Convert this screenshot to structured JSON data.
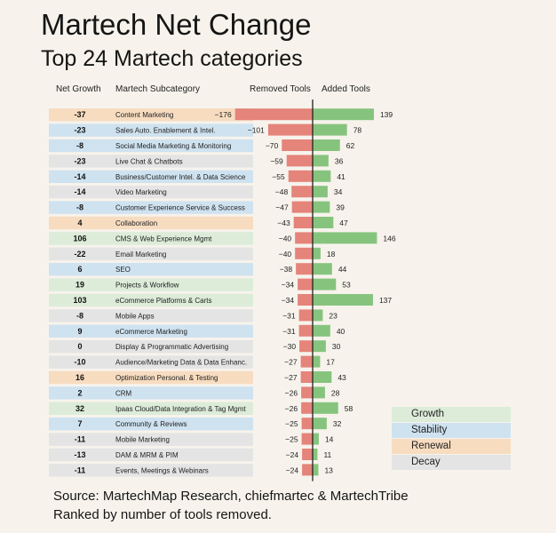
{
  "header": {
    "title": "Martech Net Change",
    "subtitle": "Top 24 Martech categories"
  },
  "columns": {
    "net_growth": "Net Growth",
    "subcategory": "Martech Subcategory",
    "removed": "Removed Tools",
    "added": "Added Tools"
  },
  "colors": {
    "Growth": "#dcecd9",
    "Stability": "#cfe2f0",
    "Renewal": "#f7dcc0",
    "Decay": "#e4e4e4",
    "removed_bar": "#e4847a",
    "added_bar": "#86c47e",
    "axis": "#222222"
  },
  "legend": {
    "items": [
      {
        "label": "Growth",
        "color": "#dcecd9"
      },
      {
        "label": "Stability",
        "color": "#cfe2f0"
      },
      {
        "label": "Renewal",
        "color": "#f7dcc0"
      },
      {
        "label": "Decay",
        "color": "#e4e4e4"
      }
    ]
  },
  "footer": {
    "source_line1": "Source: MartechMap Research, chiefmartec & MartechTribe",
    "source_line2": "Ranked by number of tools removed."
  },
  "chart_data": {
    "type": "bar",
    "orientation": "horizontal-diverging",
    "categories": [
      "Content Marketing",
      "Sales Auto. Enablement & Intel.",
      "Social Media Marketing & Monitoring",
      "Live Chat & Chatbots",
      "Business/Customer Intel. & Data Science",
      "Video Marketing",
      "Customer Experience Service & Success",
      "Collaboration",
      "CMS & Web Experience Mgmt",
      "Email Marketing",
      "SEO",
      "Projects & Workflow",
      "eCommerce Platforms & Carts",
      "Mobile Apps",
      "eCommerce Marketing",
      "Display & Programmatic Advertising",
      "Audience/Marketing Data & Data Enhanc.",
      "Optimization Personal. & Testing",
      "CRM",
      "Ipaas Cloud/Data Integration & Tag Mgmt",
      "Community & Reviews",
      "Mobile Marketing",
      "DAM & MRM & PIM",
      "Events, Meetings & Webinars"
    ],
    "net_growth": [
      -37,
      -23,
      -8,
      -23,
      -14,
      -14,
      -8,
      4,
      106,
      -22,
      6,
      19,
      103,
      -8,
      9,
      0,
      -10,
      16,
      2,
      32,
      7,
      -11,
      -13,
      -11
    ],
    "status": [
      "Renewal",
      "Stability",
      "Stability",
      "Decay",
      "Stability",
      "Decay",
      "Stability",
      "Renewal",
      "Growth",
      "Decay",
      "Stability",
      "Growth",
      "Growth",
      "Decay",
      "Stability",
      "Decay",
      "Decay",
      "Renewal",
      "Stability",
      "Growth",
      "Stability",
      "Decay",
      "Decay",
      "Decay"
    ],
    "series": [
      {
        "name": "Removed Tools",
        "values": [
          -176,
          -101,
          -70,
          -59,
          -55,
          -48,
          -47,
          -43,
          -40,
          -40,
          -38,
          -34,
          -34,
          -31,
          -31,
          -30,
          -27,
          -27,
          -26,
          -26,
          -25,
          -25,
          -24,
          -24
        ]
      },
      {
        "name": "Added Tools",
        "values": [
          139,
          78,
          62,
          36,
          41,
          34,
          39,
          47,
          146,
          18,
          44,
          53,
          137,
          23,
          40,
          30,
          17,
          43,
          28,
          58,
          32,
          14,
          11,
          13
        ]
      }
    ],
    "removed_labels": [
      "−176",
      "−101",
      "−70",
      "−59",
      "−55",
      "−48",
      "−47",
      "−43",
      "−40",
      "−40",
      "−38",
      "−34",
      "−34",
      "−31",
      "−31",
      "−30",
      "−27",
      "−27",
      "−26",
      "−26",
      "−25",
      "−25",
      "−24",
      "−24"
    ],
    "grid": false,
    "legend_position": "bottom-right"
  }
}
